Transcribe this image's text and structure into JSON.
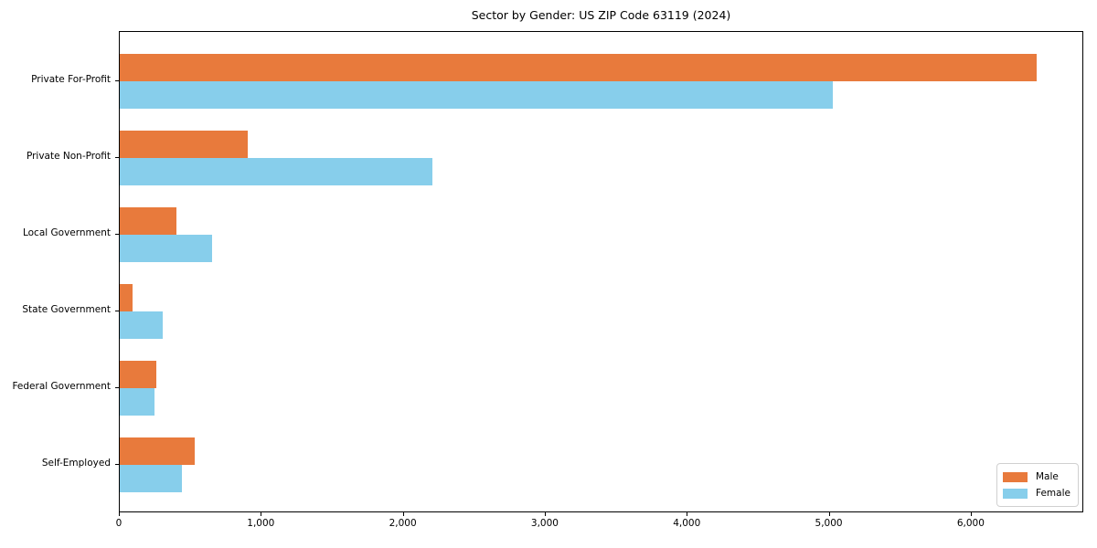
{
  "chart_data": {
    "type": "bar",
    "orientation": "horizontal",
    "title": "Sector by Gender: US ZIP Code 63119 (2024)",
    "categories": [
      "Private For-Profit",
      "Private Non-Profit",
      "Local Government",
      "State Government",
      "Federal Government",
      "Self-Employed"
    ],
    "series": [
      {
        "name": "Male",
        "color": "#e87a3c",
        "values": [
          6460,
          900,
          400,
          90,
          255,
          530
        ]
      },
      {
        "name": "Female",
        "color": "#87ceeb",
        "values": [
          5020,
          2200,
          650,
          305,
          245,
          440
        ]
      }
    ],
    "xlabel": "",
    "ylabel": "",
    "xlim": [
      0,
      6780
    ],
    "xticks": [
      0,
      1000,
      2000,
      3000,
      4000,
      5000,
      6000
    ],
    "xtick_labels": [
      "0",
      "1,000",
      "2,000",
      "3,000",
      "4,000",
      "5,000",
      "6,000"
    ],
    "grid": false,
    "legend": {
      "position": "lower-right",
      "entries": [
        "Male",
        "Female"
      ]
    }
  }
}
